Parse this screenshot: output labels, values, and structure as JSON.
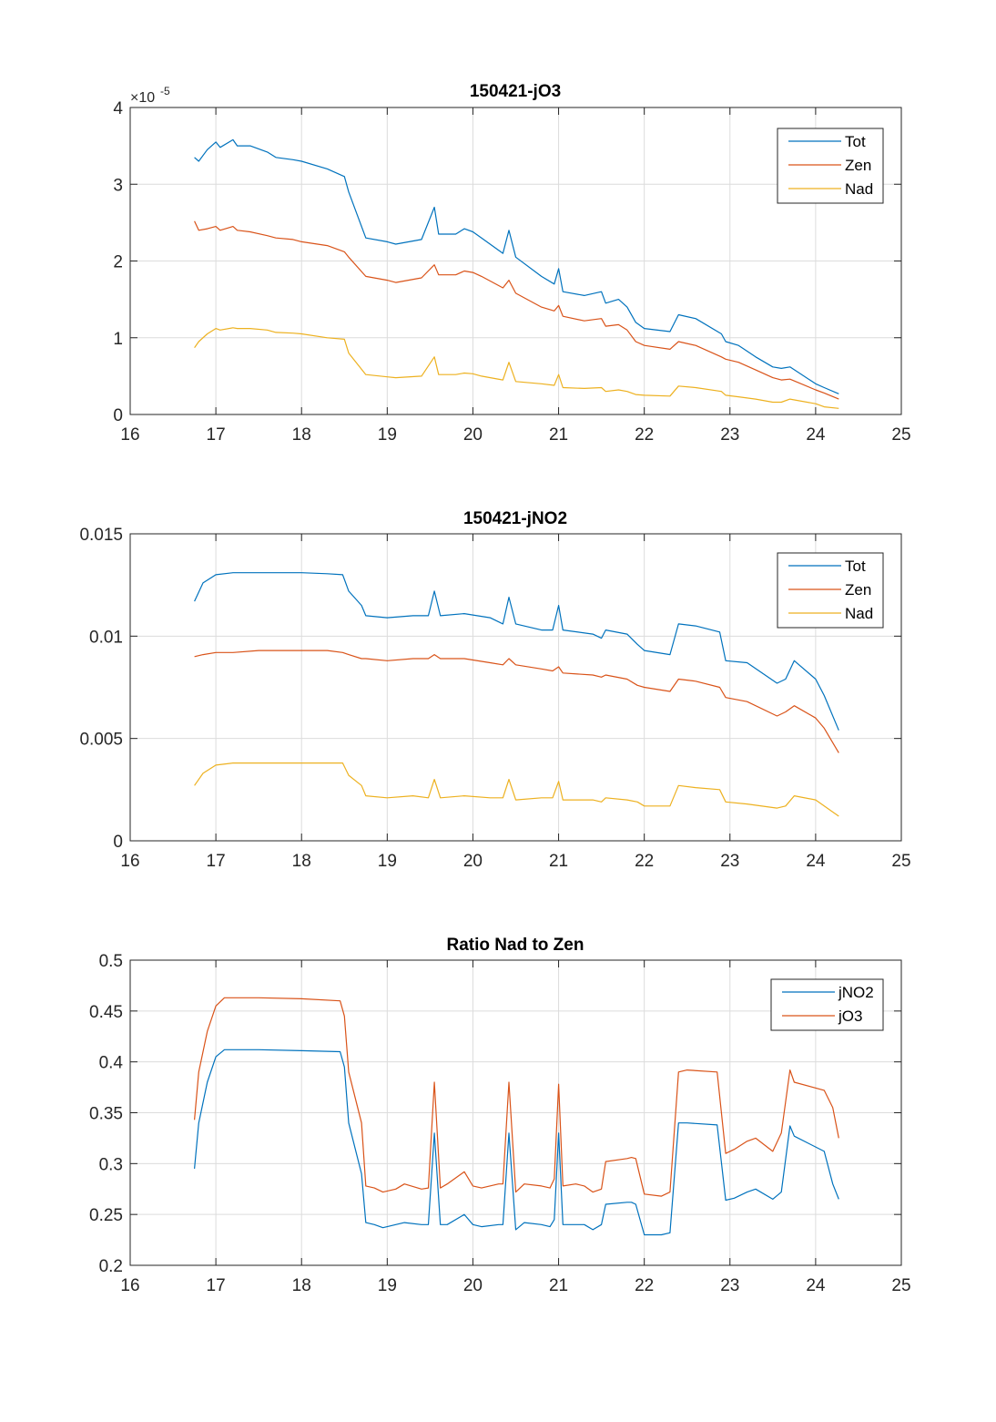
{
  "colors": {
    "tot": "#0072BD",
    "zen": "#D95319",
    "nad": "#EDB120",
    "grid": "#dcdcdc",
    "axis": "#262626"
  },
  "chart_data": [
    {
      "type": "line",
      "title": "150421-jO3",
      "xlabel": "",
      "ylabel": "",
      "xlim": [
        16,
        25
      ],
      "ylim": [
        0,
        4
      ],
      "xticks": [
        "16",
        "17",
        "18",
        "19",
        "20",
        "21",
        "22",
        "23",
        "24",
        "25"
      ],
      "yticks": [
        "0",
        "1",
        "2",
        "3",
        "4"
      ],
      "exponent_label": "×10",
      "exponent_power": "-5",
      "grid": true,
      "legend_position": "top-right",
      "series": [
        {
          "name": "Tot",
          "color": "#0072BD",
          "x": [
            16.75,
            16.8,
            16.9,
            17.0,
            17.05,
            17.2,
            17.25,
            17.4,
            17.6,
            17.7,
            17.9,
            18.0,
            18.3,
            18.5,
            18.55,
            18.75,
            19.0,
            19.1,
            19.4,
            19.55,
            19.6,
            19.8,
            19.9,
            20.0,
            20.1,
            20.35,
            20.42,
            20.5,
            20.8,
            20.95,
            21.0,
            21.05,
            21.3,
            21.5,
            21.55,
            21.7,
            21.8,
            21.9,
            22.0,
            22.3,
            22.4,
            22.6,
            22.9,
            22.95,
            23.1,
            23.3,
            23.5,
            23.6,
            23.7,
            24.0,
            24.1,
            24.27
          ],
          "y": [
            3.35,
            3.3,
            3.45,
            3.55,
            3.48,
            3.58,
            3.5,
            3.5,
            3.42,
            3.35,
            3.32,
            3.3,
            3.2,
            3.1,
            2.9,
            2.3,
            2.25,
            2.22,
            2.28,
            2.7,
            2.35,
            2.35,
            2.42,
            2.38,
            2.3,
            2.1,
            2.4,
            2.05,
            1.8,
            1.7,
            1.9,
            1.6,
            1.55,
            1.6,
            1.45,
            1.5,
            1.4,
            1.2,
            1.12,
            1.08,
            1.3,
            1.25,
            1.05,
            0.95,
            0.9,
            0.75,
            0.62,
            0.6,
            0.62,
            0.4,
            0.35,
            0.27
          ]
        },
        {
          "name": "Zen",
          "color": "#D95319",
          "x": [
            16.75,
            16.8,
            16.9,
            17.0,
            17.05,
            17.2,
            17.25,
            17.4,
            17.6,
            17.7,
            17.9,
            18.0,
            18.3,
            18.5,
            18.55,
            18.75,
            19.0,
            19.1,
            19.4,
            19.55,
            19.6,
            19.8,
            19.9,
            20.0,
            20.1,
            20.35,
            20.42,
            20.5,
            20.8,
            20.95,
            21.0,
            21.05,
            21.3,
            21.5,
            21.55,
            21.7,
            21.8,
            21.9,
            22.0,
            22.3,
            22.4,
            22.6,
            22.9,
            22.95,
            23.1,
            23.3,
            23.5,
            23.6,
            23.7,
            24.0,
            24.1,
            24.27
          ],
          "y": [
            2.52,
            2.4,
            2.42,
            2.45,
            2.4,
            2.45,
            2.4,
            2.38,
            2.33,
            2.3,
            2.28,
            2.25,
            2.2,
            2.12,
            2.05,
            1.8,
            1.75,
            1.72,
            1.78,
            1.95,
            1.82,
            1.82,
            1.87,
            1.85,
            1.8,
            1.65,
            1.75,
            1.58,
            1.4,
            1.35,
            1.42,
            1.28,
            1.22,
            1.25,
            1.15,
            1.17,
            1.1,
            0.95,
            0.9,
            0.85,
            0.95,
            0.9,
            0.75,
            0.72,
            0.68,
            0.58,
            0.48,
            0.45,
            0.46,
            0.32,
            0.28,
            0.2
          ]
        },
        {
          "name": "Nad",
          "color": "#EDB120",
          "x": [
            16.75,
            16.8,
            16.9,
            17.0,
            17.05,
            17.2,
            17.25,
            17.4,
            17.6,
            17.7,
            17.9,
            18.0,
            18.3,
            18.5,
            18.55,
            18.75,
            19.0,
            19.1,
            19.4,
            19.55,
            19.6,
            19.8,
            19.9,
            20.0,
            20.1,
            20.35,
            20.42,
            20.5,
            20.8,
            20.95,
            21.0,
            21.05,
            21.3,
            21.5,
            21.55,
            21.7,
            21.8,
            21.9,
            22.0,
            22.3,
            22.4,
            22.6,
            22.9,
            22.95,
            23.1,
            23.3,
            23.5,
            23.6,
            23.7,
            24.0,
            24.1,
            24.27
          ],
          "y": [
            0.87,
            0.95,
            1.05,
            1.12,
            1.1,
            1.13,
            1.12,
            1.12,
            1.1,
            1.07,
            1.06,
            1.05,
            1.0,
            0.98,
            0.8,
            0.52,
            0.49,
            0.48,
            0.5,
            0.75,
            0.52,
            0.52,
            0.54,
            0.53,
            0.5,
            0.45,
            0.68,
            0.43,
            0.4,
            0.38,
            0.52,
            0.35,
            0.34,
            0.35,
            0.3,
            0.32,
            0.3,
            0.26,
            0.25,
            0.24,
            0.37,
            0.35,
            0.3,
            0.25,
            0.23,
            0.2,
            0.16,
            0.16,
            0.2,
            0.14,
            0.1,
            0.08
          ]
        }
      ]
    },
    {
      "type": "line",
      "title": "150421-jNO2",
      "xlabel": "",
      "ylabel": "",
      "xlim": [
        16,
        25
      ],
      "ylim": [
        0,
        0.015
      ],
      "xticks": [
        "16",
        "17",
        "18",
        "19",
        "20",
        "21",
        "22",
        "23",
        "24",
        "25"
      ],
      "yticks": [
        "0",
        "0.005",
        "0.01",
        "0.015"
      ],
      "grid": true,
      "legend_position": "top-right",
      "series": [
        {
          "name": "Tot",
          "color": "#0072BD",
          "x": [
            16.75,
            16.85,
            17.0,
            17.2,
            17.5,
            18.0,
            18.3,
            18.48,
            18.55,
            18.7,
            18.75,
            19.0,
            19.3,
            19.48,
            19.55,
            19.62,
            19.9,
            20.2,
            20.35,
            20.42,
            20.5,
            20.8,
            20.93,
            21.0,
            21.05,
            21.4,
            21.5,
            21.55,
            21.8,
            21.92,
            22.0,
            22.3,
            22.4,
            22.6,
            22.88,
            22.95,
            23.2,
            23.55,
            23.65,
            23.75,
            24.0,
            24.1,
            24.27
          ],
          "y": [
            0.0117,
            0.0126,
            0.013,
            0.0131,
            0.0131,
            0.0131,
            0.01305,
            0.013,
            0.0122,
            0.0115,
            0.011,
            0.0109,
            0.011,
            0.011,
            0.0122,
            0.011,
            0.0111,
            0.0109,
            0.0106,
            0.0119,
            0.0106,
            0.0103,
            0.0103,
            0.0115,
            0.0103,
            0.0101,
            0.0099,
            0.0103,
            0.0101,
            0.0096,
            0.0093,
            0.0091,
            0.0106,
            0.0105,
            0.0102,
            0.0088,
            0.0087,
            0.0077,
            0.0079,
            0.0088,
            0.0079,
            0.0071,
            0.0054
          ]
        },
        {
          "name": "Zen",
          "color": "#D95319",
          "x": [
            16.75,
            16.85,
            17.0,
            17.2,
            17.5,
            18.0,
            18.3,
            18.48,
            18.55,
            18.7,
            18.75,
            19.0,
            19.3,
            19.48,
            19.55,
            19.62,
            19.9,
            20.2,
            20.35,
            20.42,
            20.5,
            20.8,
            20.93,
            21.0,
            21.05,
            21.4,
            21.5,
            21.55,
            21.8,
            21.92,
            22.0,
            22.3,
            22.4,
            22.6,
            22.88,
            22.95,
            23.2,
            23.55,
            23.65,
            23.75,
            24.0,
            24.1,
            24.27
          ],
          "y": [
            0.009,
            0.0091,
            0.0092,
            0.0092,
            0.0093,
            0.0093,
            0.0093,
            0.0092,
            0.0091,
            0.0089,
            0.0089,
            0.0088,
            0.0089,
            0.0089,
            0.0091,
            0.0089,
            0.0089,
            0.0087,
            0.0086,
            0.0089,
            0.0086,
            0.0084,
            0.0083,
            0.0085,
            0.0082,
            0.0081,
            0.008,
            0.0081,
            0.0079,
            0.0076,
            0.0075,
            0.0073,
            0.0079,
            0.0078,
            0.0075,
            0.007,
            0.0068,
            0.0061,
            0.0063,
            0.0066,
            0.006,
            0.0055,
            0.0043
          ]
        },
        {
          "name": "Nad",
          "color": "#EDB120",
          "x": [
            16.75,
            16.85,
            17.0,
            17.2,
            17.5,
            18.0,
            18.3,
            18.48,
            18.55,
            18.7,
            18.75,
            19.0,
            19.3,
            19.48,
            19.55,
            19.62,
            19.9,
            20.2,
            20.35,
            20.42,
            20.5,
            20.8,
            20.93,
            21.0,
            21.05,
            21.4,
            21.5,
            21.55,
            21.8,
            21.92,
            22.0,
            22.3,
            22.4,
            22.6,
            22.88,
            22.95,
            23.2,
            23.55,
            23.65,
            23.75,
            24.0,
            24.1,
            24.27
          ],
          "y": [
            0.0027,
            0.0033,
            0.0037,
            0.0038,
            0.0038,
            0.0038,
            0.0038,
            0.0038,
            0.0032,
            0.0027,
            0.0022,
            0.0021,
            0.0022,
            0.0021,
            0.003,
            0.0021,
            0.0022,
            0.0021,
            0.0021,
            0.003,
            0.002,
            0.0021,
            0.0021,
            0.0029,
            0.002,
            0.002,
            0.0019,
            0.0021,
            0.002,
            0.0019,
            0.0017,
            0.0017,
            0.0027,
            0.0026,
            0.0025,
            0.0019,
            0.0018,
            0.0016,
            0.0017,
            0.0022,
            0.002,
            0.0017,
            0.0012
          ]
        }
      ]
    },
    {
      "type": "line",
      "title": "Ratio Nad to Zen",
      "xlabel": "",
      "ylabel": "",
      "xlim": [
        16,
        25
      ],
      "ylim": [
        0.2,
        0.5
      ],
      "xticks": [
        "16",
        "17",
        "18",
        "19",
        "20",
        "21",
        "22",
        "23",
        "24",
        "25"
      ],
      "yticks": [
        "0.2",
        "0.25",
        "0.3",
        "0.35",
        "0.4",
        "0.45",
        "0.5"
      ],
      "grid": true,
      "legend_position": "top-right",
      "series": [
        {
          "name": "jNO2",
          "color": "#0072BD",
          "x": [
            16.75,
            16.8,
            16.9,
            17.0,
            17.1,
            17.5,
            18.0,
            18.45,
            18.5,
            18.55,
            18.7,
            18.75,
            18.85,
            18.95,
            19.1,
            19.2,
            19.4,
            19.48,
            19.55,
            19.62,
            19.7,
            19.9,
            19.95,
            20.0,
            20.1,
            20.3,
            20.35,
            20.42,
            20.5,
            20.6,
            20.8,
            20.9,
            20.95,
            21.0,
            21.05,
            21.2,
            21.3,
            21.4,
            21.5,
            21.55,
            21.8,
            21.85,
            21.9,
            22.0,
            22.2,
            22.3,
            22.4,
            22.5,
            22.85,
            22.95,
            23.05,
            23.2,
            23.3,
            23.5,
            23.6,
            23.7,
            23.75,
            24.1,
            24.2,
            24.27
          ],
          "y": [
            0.295,
            0.34,
            0.38,
            0.405,
            0.412,
            0.412,
            0.411,
            0.41,
            0.395,
            0.34,
            0.29,
            0.242,
            0.24,
            0.237,
            0.24,
            0.242,
            0.24,
            0.24,
            0.33,
            0.24,
            0.24,
            0.25,
            0.245,
            0.24,
            0.238,
            0.24,
            0.24,
            0.33,
            0.235,
            0.242,
            0.24,
            0.238,
            0.245,
            0.33,
            0.24,
            0.24,
            0.24,
            0.235,
            0.24,
            0.26,
            0.262,
            0.262,
            0.26,
            0.23,
            0.23,
            0.232,
            0.34,
            0.34,
            0.338,
            0.264,
            0.266,
            0.272,
            0.275,
            0.265,
            0.272,
            0.337,
            0.327,
            0.312,
            0.28,
            0.265
          ]
        },
        {
          "name": "jO3",
          "color": "#D95319",
          "x": [
            16.75,
            16.8,
            16.9,
            17.0,
            17.1,
            17.5,
            18.0,
            18.45,
            18.5,
            18.55,
            18.7,
            18.75,
            18.85,
            18.95,
            19.1,
            19.2,
            19.4,
            19.48,
            19.55,
            19.62,
            19.7,
            19.9,
            19.95,
            20.0,
            20.1,
            20.3,
            20.35,
            20.42,
            20.5,
            20.6,
            20.8,
            20.9,
            20.95,
            21.0,
            21.05,
            21.2,
            21.3,
            21.4,
            21.5,
            21.55,
            21.8,
            21.85,
            21.9,
            22.0,
            22.2,
            22.3,
            22.4,
            22.5,
            22.85,
            22.95,
            23.05,
            23.2,
            23.3,
            23.5,
            23.6,
            23.7,
            23.75,
            24.1,
            24.2,
            24.27
          ],
          "y": [
            0.343,
            0.39,
            0.43,
            0.455,
            0.463,
            0.463,
            0.462,
            0.46,
            0.445,
            0.39,
            0.34,
            0.278,
            0.276,
            0.272,
            0.275,
            0.28,
            0.275,
            0.276,
            0.38,
            0.276,
            0.28,
            0.292,
            0.285,
            0.278,
            0.276,
            0.28,
            0.28,
            0.38,
            0.272,
            0.28,
            0.278,
            0.276,
            0.285,
            0.378,
            0.278,
            0.28,
            0.278,
            0.272,
            0.275,
            0.302,
            0.305,
            0.306,
            0.305,
            0.27,
            0.268,
            0.272,
            0.39,
            0.392,
            0.39,
            0.31,
            0.314,
            0.322,
            0.325,
            0.312,
            0.33,
            0.392,
            0.38,
            0.372,
            0.355,
            0.325
          ]
        }
      ]
    }
  ]
}
